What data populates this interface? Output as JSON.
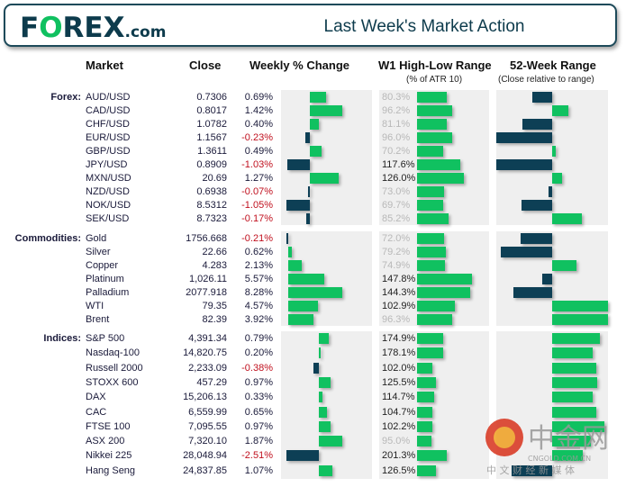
{
  "header": {
    "logo": "FOREX.com",
    "title": "Last Week's Market Action"
  },
  "columns": {
    "market": "Market",
    "close": "Close",
    "weekly": "Weekly % Change",
    "w1": "W1 High-Low Range",
    "w1_sub": "(% of ATR 10)",
    "range52": "52-Week Range",
    "range52_sub": "(Close relative to range)"
  },
  "colors": {
    "positive": "#10c160",
    "negative": "#0d3f55",
    "neg_text": "#c0101e"
  },
  "sections": [
    {
      "label": "Forex:",
      "rows": [
        {
          "market": "AUD/USD",
          "close": "0.7306",
          "change": "0.69%",
          "change_val": 0.69,
          "w1": "80.3%",
          "w1_val": 80.3,
          "r52": -0.35
        },
        {
          "market": "CAD/USD",
          "close": "0.8017",
          "change": "1.42%",
          "change_val": 1.42,
          "w1": "96.2%",
          "w1_val": 96.2,
          "r52": 0.29
        },
        {
          "market": "CHF/USD",
          "close": "1.0782",
          "change": "0.40%",
          "change_val": 0.4,
          "w1": "81.1%",
          "w1_val": 81.1,
          "r52": -0.53
        },
        {
          "market": "EUR/USD",
          "close": "1.1567",
          "change": "-0.23%",
          "change_val": -0.23,
          "w1": "96.0%",
          "w1_val": 96.0,
          "r52": -1.0
        },
        {
          "market": "GBP/USD",
          "close": "1.3611",
          "change": "0.49%",
          "change_val": 0.49,
          "w1": "70.2%",
          "w1_val": 70.2,
          "r52": 0.06
        },
        {
          "market": "JPY/USD",
          "close": "0.8909",
          "change": "-1.03%",
          "change_val": -1.03,
          "w1": "117.6%",
          "w1_val": 117.6,
          "r52": -1.0
        },
        {
          "market": "MXN/USD",
          "close": "20.69",
          "change": "1.27%",
          "change_val": 1.27,
          "w1": "126.0%",
          "w1_val": 126.0,
          "r52": 0.18
        },
        {
          "market": "NZD/USD",
          "close": "0.6938",
          "change": "-0.07%",
          "change_val": -0.07,
          "w1": "73.0%",
          "w1_val": 73.0,
          "r52": -0.06
        },
        {
          "market": "NOK/USD",
          "close": "8.5312",
          "change": "-1.05%",
          "change_val": -1.05,
          "w1": "69.7%",
          "w1_val": 69.7,
          "r52": -0.55
        },
        {
          "market": "SEK/USD",
          "close": "8.7323",
          "change": "-0.17%",
          "change_val": -0.17,
          "w1": "85.2%",
          "w1_val": 85.2,
          "r52": 0.53
        }
      ]
    },
    {
      "label": "Commodities:",
      "rows": [
        {
          "market": "Gold",
          "close": "1756.668",
          "change": "-0.21%",
          "change_val": -0.21,
          "w1": "72.0%",
          "w1_val": 72.0,
          "r52": -0.56
        },
        {
          "market": "Silver",
          "close": "22.66",
          "change": "0.62%",
          "change_val": 0.62,
          "w1": "79.2%",
          "w1_val": 79.2,
          "r52": -0.92
        },
        {
          "market": "Copper",
          "close": "4.283",
          "change": "2.13%",
          "change_val": 2.13,
          "w1": "74.9%",
          "w1_val": 74.9,
          "r52": 0.44
        },
        {
          "market": "Platinum",
          "close": "1,026.11",
          "change": "5.57%",
          "change_val": 5.57,
          "w1": "147.8%",
          "w1_val": 147.8,
          "r52": -0.18
        },
        {
          "market": "Palladium",
          "close": "2077.918",
          "change": "8.28%",
          "change_val": 8.28,
          "w1": "144.3%",
          "w1_val": 144.3,
          "r52": -0.69
        },
        {
          "market": "WTI",
          "close": "79.35",
          "change": "4.57%",
          "change_val": 4.57,
          "w1": "102.9%",
          "w1_val": 102.9,
          "r52": 1.0
        },
        {
          "market": "Brent",
          "close": "82.39",
          "change": "3.92%",
          "change_val": 3.92,
          "w1": "96.3%",
          "w1_val": 96.3,
          "r52": 1.0
        }
      ]
    },
    {
      "label": "Indices:",
      "rows": [
        {
          "market": "S&P 500",
          "close": "4,391.34",
          "change": "0.79%",
          "change_val": 0.79,
          "w1": "174.9%",
          "w1_val": 174.9,
          "r52": 0.85
        },
        {
          "market": "Nasdaq-100",
          "close": "14,820.75",
          "change": "0.20%",
          "change_val": 0.2,
          "w1": "178.1%",
          "w1_val": 178.1,
          "r52": 0.73
        },
        {
          "market": "Russell 2000",
          "close": "2,233.09",
          "change": "-0.38%",
          "change_val": -0.38,
          "w1": "102.0%",
          "w1_val": 102.0,
          "r52": 0.79
        },
        {
          "market": "STOXX 600",
          "close": "457.29",
          "change": "0.97%",
          "change_val": 0.97,
          "w1": "125.5%",
          "w1_val": 125.5,
          "r52": 0.81
        },
        {
          "market": "DAX",
          "close": "15,206.13",
          "change": "0.33%",
          "change_val": 0.33,
          "w1": "114.7%",
          "w1_val": 114.7,
          "r52": 0.73
        },
        {
          "market": "CAC",
          "close": "6,559.99",
          "change": "0.65%",
          "change_val": 0.65,
          "w1": "104.7%",
          "w1_val": 104.7,
          "r52": 0.79
        },
        {
          "market": "FTSE 100",
          "close": "7,095.55",
          "change": "0.97%",
          "change_val": 0.97,
          "w1": "102.2%",
          "w1_val": 102.2,
          "r52": 0.94
        },
        {
          "market": "ASX 200",
          "close": "7,320.10",
          "change": "1.87%",
          "change_val": 1.87,
          "w1": "95.0%",
          "w1_val": 95.0,
          "r52": 0.7
        },
        {
          "market": "Nikkei 225",
          "close": "28,048.94",
          "change": "-2.51%",
          "change_val": -2.51,
          "w1": "201.3%",
          "w1_val": 201.3,
          "r52": 0.55
        },
        {
          "market": "Hang Seng",
          "close": "24,837.85",
          "change": "1.07%",
          "change_val": 1.07,
          "w1": "126.5%",
          "w1_val": 126.5,
          "r52": -0.72
        }
      ]
    }
  ],
  "watermark": {
    "brand": "中金网",
    "site": "CNGOLD.COM.CN",
    "tagline": "中 文 财 经 新 媒 体"
  }
}
